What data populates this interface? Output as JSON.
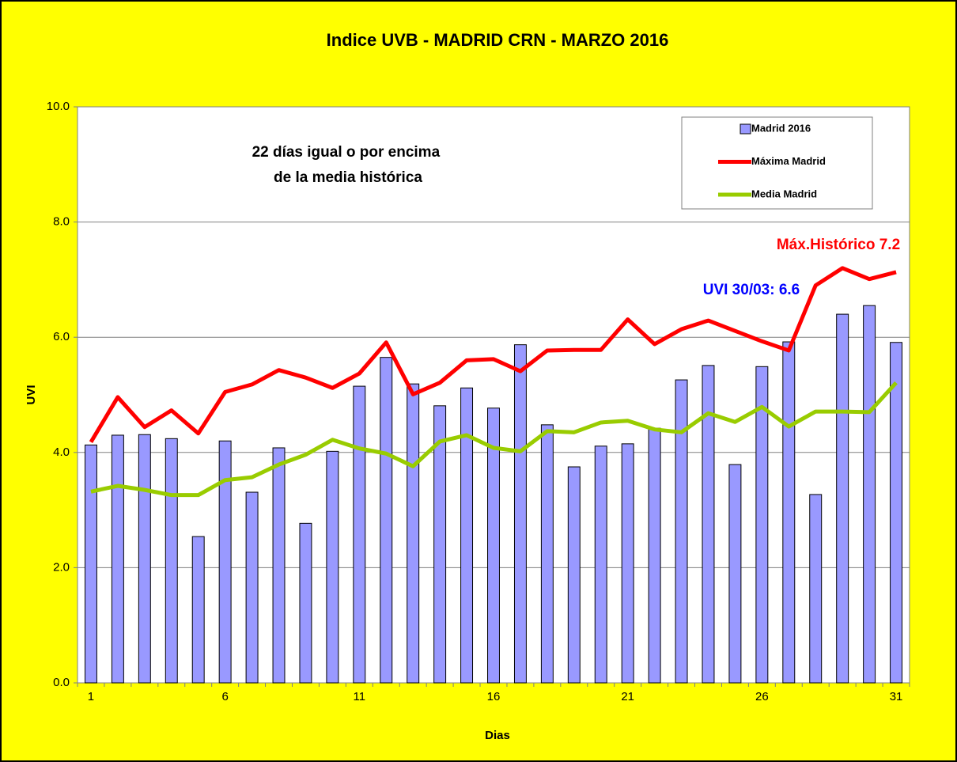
{
  "chart_data": {
    "type": "bar",
    "title": "Indice UVB -  MADRID CRN -  MARZO  2016",
    "x_label": "Dias",
    "y_label": "UVI",
    "categories": [
      "1",
      null,
      null,
      null,
      null,
      "6",
      null,
      null,
      null,
      null,
      "11",
      null,
      null,
      null,
      null,
      "16",
      null,
      null,
      null,
      null,
      "21",
      null,
      null,
      null,
      null,
      "26",
      null,
      null,
      null,
      null,
      "31"
    ],
    "series": [
      {
        "name": "Madrid 2016",
        "type": "bar",
        "color": "#9999ff",
        "values": [
          4.13,
          4.3,
          4.31,
          4.24,
          2.54,
          4.2,
          3.31,
          4.08,
          2.77,
          4.02,
          5.15,
          5.65,
          5.19,
          4.81,
          5.12,
          4.77,
          5.87,
          4.48,
          3.75,
          4.11,
          4.15,
          4.42,
          5.26,
          5.51,
          3.79,
          5.49,
          5.92,
          3.27,
          6.4,
          6.55,
          5.91
        ]
      },
      {
        "name": "Máxima Madrid",
        "type": "line",
        "color": "#ff0000",
        "values": [
          4.18,
          4.96,
          4.44,
          4.73,
          4.33,
          5.05,
          5.18,
          5.43,
          5.3,
          5.12,
          5.37,
          5.91,
          5.01,
          5.21,
          5.6,
          5.62,
          5.41,
          5.77,
          5.78,
          5.78,
          6.31,
          5.88,
          6.14,
          6.29,
          6.11,
          5.93,
          5.77,
          6.9,
          7.2,
          7.01,
          7.13
        ]
      },
      {
        "name": "Media Madrid",
        "type": "line",
        "color": "#99cc00",
        "values": [
          3.32,
          3.42,
          3.35,
          3.26,
          3.26,
          3.52,
          3.57,
          3.79,
          3.96,
          4.22,
          4.07,
          3.98,
          3.76,
          4.19,
          4.3,
          4.08,
          4.02,
          4.37,
          4.35,
          4.52,
          4.55,
          4.4,
          4.35,
          4.68,
          4.53,
          4.79,
          4.45,
          4.71,
          4.71,
          4.7,
          5.21
        ]
      }
    ],
    "ylim": [
      0,
      10
    ],
    "yticks": [
      {
        "value": 0,
        "label": "0.0"
      },
      {
        "value": 2,
        "label": "2.0"
      },
      {
        "value": 4,
        "label": "4.0"
      },
      {
        "value": 6,
        "label": "6.0"
      },
      {
        "value": 8,
        "label": "8.0"
      },
      {
        "value": 10,
        "label": "10.0"
      }
    ],
    "grid": true,
    "legend": "top-right",
    "annotations": [
      {
        "lines": [
          "22 días igual o por encima",
          "de la media histórica"
        ],
        "color": "#000000"
      },
      {
        "text": "UVI  30/03: 6.6",
        "color": "#0000ff"
      },
      {
        "text": "Máx.Histórico 7.2",
        "color": "#ff0000"
      }
    ]
  }
}
